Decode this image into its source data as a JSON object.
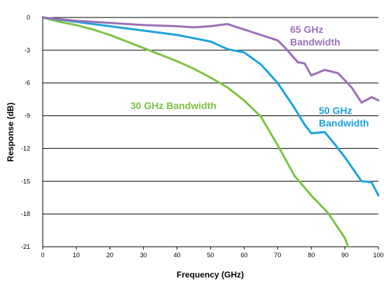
{
  "colors": {
    "s30": "#7dc242",
    "s50": "#1ba3dc",
    "s65": "#9b6fb6"
  },
  "chart_data": {
    "type": "line",
    "title": "",
    "xlabel": "Frequency (GHz)",
    "ylabel": "Response (dB)",
    "xlim": [
      0,
      100
    ],
    "ylim": [
      -21,
      0
    ],
    "x_ticks": [
      "0",
      "10",
      "20",
      "30",
      "40",
      "50",
      "60",
      "70",
      "80",
      "90",
      "100"
    ],
    "y_ticks": [
      "0",
      "-3",
      "-6",
      "-9",
      "-12",
      "-15",
      "-18",
      "-21"
    ],
    "grid": "horizontal",
    "series": [
      {
        "name": "30 GHz Bandwidth",
        "color": "#7dc242",
        "x": [
          0,
          5,
          10,
          15,
          20,
          25,
          30,
          35,
          40,
          45,
          50,
          55,
          60,
          65,
          70,
          75,
          80,
          85,
          90,
          91
        ],
        "y": [
          0,
          -0.4,
          -0.7,
          -1.1,
          -1.6,
          -2.2,
          -2.8,
          -3.4,
          -4.0,
          -4.7,
          -5.5,
          -6.4,
          -7.6,
          -9.1,
          -11.7,
          -14.5,
          -16.3,
          -17.9,
          -20.2,
          -21.0
        ]
      },
      {
        "name": "50 GHz Bandwidth",
        "color": "#1ba3dc",
        "x": [
          0,
          10,
          20,
          30,
          40,
          45,
          50,
          55,
          60,
          65,
          70,
          75,
          78,
          80,
          84,
          87,
          90,
          95,
          98,
          100
        ],
        "y": [
          0,
          -0.4,
          -0.8,
          -1.2,
          -1.6,
          -1.9,
          -2.2,
          -2.9,
          -3.2,
          -4.3,
          -6.0,
          -8.3,
          -9.8,
          -10.6,
          -10.5,
          -11.6,
          -12.8,
          -15.0,
          -15.1,
          -16.3
        ]
      },
      {
        "name": "65 GHz Bandwidth",
        "color": "#9b6fb6",
        "x": [
          0,
          10,
          20,
          30,
          40,
          45,
          50,
          55,
          60,
          65,
          70,
          72,
          76,
          78,
          80,
          84,
          88,
          92,
          95,
          98,
          100
        ],
        "y": [
          0,
          -0.3,
          -0.5,
          -0.7,
          -0.8,
          -0.9,
          -0.8,
          -0.6,
          -1.1,
          -1.6,
          -2.1,
          -2.7,
          -4.1,
          -4.2,
          -5.3,
          -4.8,
          -5.1,
          -6.4,
          -7.8,
          -7.3,
          -7.6
        ]
      }
    ]
  }
}
